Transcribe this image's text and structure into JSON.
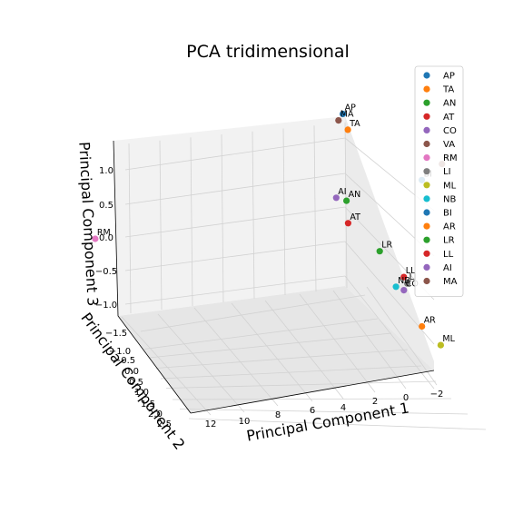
{
  "chart_data": {
    "type": "scatter",
    "projection": "3d",
    "title": "PCA tridimensional",
    "xlabel": "Principal Component 1",
    "ylabel": "Principal Component 2",
    "zlabel": "Principal Component 3",
    "xticks": [
      "12",
      "10",
      "8",
      "6",
      "4",
      "2",
      "0",
      "−2"
    ],
    "yticks": [
      "−1.5",
      "−1.0",
      "−0.5",
      "0.0",
      "0.5",
      "1.0",
      "1.5",
      "2.0",
      "2.5"
    ],
    "zticks": [
      "1.0",
      "0.5",
      "0.0",
      "−0.5",
      "−1.0"
    ],
    "grid": true,
    "legend": "top-right",
    "series": [
      {
        "name": "AP",
        "label": "AP",
        "color": "#1f77b4",
        "x": 3.6,
        "y": -1.2,
        "z": 1.15
      },
      {
        "name": "TA",
        "label": "TA",
        "color": "#ff7f0e",
        "x": 3.6,
        "y": -1.0,
        "z": 1.0
      },
      {
        "name": "AN",
        "label": "AN",
        "color": "#2ca02c",
        "x": 4.0,
        "y": -0.5,
        "z": 0.15
      },
      {
        "name": "AT",
        "label": "AT",
        "color": "#d62728",
        "x": 4.1,
        "y": -0.3,
        "z": -0.1
      },
      {
        "name": "CO",
        "label": "CO",
        "color": "#9467bd",
        "x": 2.7,
        "y": 0.0,
        "z": -1.0
      },
      {
        "name": "VA",
        "label": "VA",
        "color": "#8c564b",
        "x": 0.8,
        "y": -1.1,
        "z": 0.4
      },
      {
        "name": "RM",
        "label": "RM",
        "color": "#e377c2",
        "x": 11.5,
        "y": -0.2,
        "z": -0.2
      },
      {
        "name": "LI",
        "label": "LI",
        "color": "#7f7f7f",
        "x": 2.6,
        "y": 0.0,
        "z": -0.9
      },
      {
        "name": "ML",
        "label": "ML",
        "color": "#bcbd22",
        "x": 2.5,
        "y": 1.2,
        "z": -1.3
      },
      {
        "name": "NB",
        "label": "NB",
        "color": "#17becf",
        "x": 3.0,
        "y": 0.1,
        "z": -0.9
      },
      {
        "name": "BI",
        "label": "BI",
        "color": "#1f77b4",
        "x": 1.6,
        "y": -0.8,
        "z": 0.3
      },
      {
        "name": "AR",
        "label": "AR",
        "color": "#ff7f0e",
        "x": 2.9,
        "y": 1.0,
        "z": -1.1
      },
      {
        "name": "LR",
        "label": "LR",
        "color": "#2ca02c",
        "x": 3.4,
        "y": 0.0,
        "z": -0.4
      },
      {
        "name": "LL",
        "label": "LL",
        "color": "#d62728",
        "x": 2.7,
        "y": 0.0,
        "z": -0.8
      },
      {
        "name": "AI",
        "label": "AI",
        "color": "#9467bd",
        "x": 4.3,
        "y": -0.5,
        "z": 0.2
      },
      {
        "name": "MA",
        "label": "MA",
        "color": "#8c564b",
        "x": 3.8,
        "y": -1.1,
        "z": 1.1
      }
    ]
  }
}
